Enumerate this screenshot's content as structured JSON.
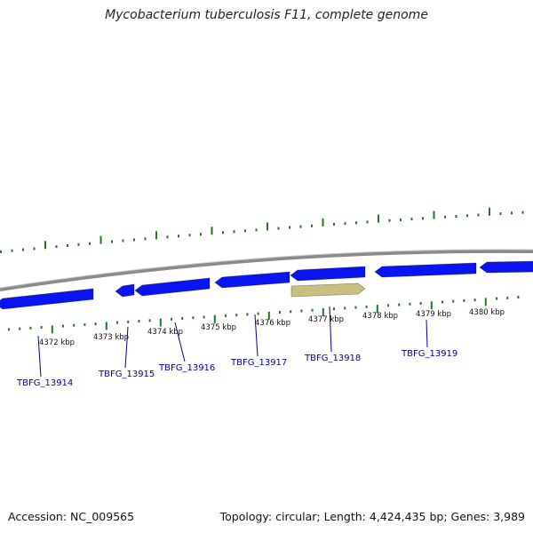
{
  "title": "Mycobacterium tuberculosis F11, complete genome",
  "footer": {
    "accession": "Accession: NC_009565",
    "summary": "Topology: circular; Length: 4,424,435 bp; Genes: 3,989"
  },
  "colors": {
    "gene_blue": "#0a14f0",
    "gene_highlight": "#c8c080",
    "backbone": "#8a8a8a",
    "tick_green": "#1e7a1e",
    "label_blue": "#0000a8"
  },
  "scale_labels": [
    "4372 kbp",
    "4373 kbp",
    "4374 kbp",
    "4375 kbp",
    "4376 kbp",
    "4377 kbp",
    "4378 kbp",
    "4379 kbp",
    "4380 kbp"
  ],
  "genes": [
    {
      "label": "TBFG_13914",
      "strand": "reverse"
    },
    {
      "label": "TBFG_13915",
      "strand": "reverse"
    },
    {
      "label": "TBFG_13916",
      "strand": "reverse"
    },
    {
      "label": "TBFG_13917",
      "strand": "reverse"
    },
    {
      "label": "TBFG_13918",
      "strand": "forward"
    },
    {
      "label": "TBFG_13919",
      "strand": "reverse"
    },
    {
      "label": "",
      "strand": "reverse"
    }
  ]
}
